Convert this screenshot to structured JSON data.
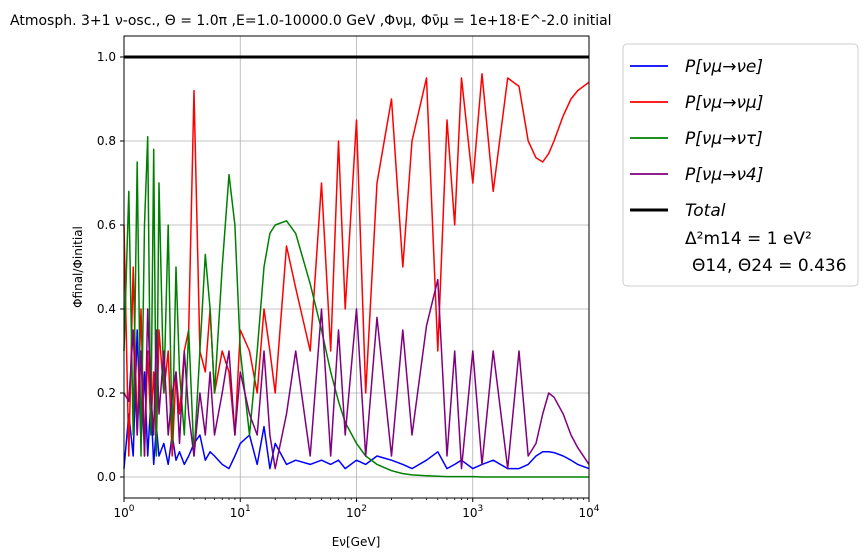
{
  "chart_data": {
    "type": "line",
    "title": "Atmosph. 3+1 ν-osc., Θ = 1.0π ,E=1.0-10000.0 GeV ,Φνμ, Φν̄μ = 1e+18·E^-2.0 initial",
    "xlabel": "Eν[GeV]",
    "ylabel": "Φfinal/Φinitial",
    "xscale": "log",
    "xlim": [
      1,
      10000
    ],
    "ylim": [
      -0.05,
      1.05
    ],
    "grid": true,
    "legend_position": "outside-right",
    "x_ticks": [
      "10^0",
      "10^1",
      "10^2",
      "10^3",
      "10^4"
    ],
    "y_ticks": [
      "0.0",
      "0.2",
      "0.4",
      "0.6",
      "0.8",
      "1.0"
    ],
    "legend_note": [
      "Δ²m14 = 1 eV²",
      "Θ14, Θ24 = 0.436"
    ],
    "series": [
      {
        "name": "P[νμ→νe]",
        "color": "#0000ff",
        "x": [
          1,
          1.1,
          1.2,
          1.3,
          1.4,
          1.5,
          1.6,
          1.7,
          1.8,
          1.9,
          2.0,
          2.2,
          2.4,
          2.6,
          2.8,
          3.0,
          3.3,
          3.6,
          4.0,
          4.5,
          5,
          5.5,
          6,
          7,
          8,
          9,
          10,
          12,
          14,
          16,
          18,
          20,
          25,
          30,
          40,
          50,
          60,
          70,
          80,
          100,
          120,
          150,
          200,
          250,
          300,
          400,
          500,
          600,
          700,
          800,
          1000,
          1200,
          1500,
          2000,
          2500,
          3000,
          3500,
          4000,
          4500,
          5000,
          6000,
          7000,
          8000,
          10000
        ],
        "y": [
          0.02,
          0.15,
          0.05,
          0.35,
          0.08,
          0.25,
          0.05,
          0.18,
          0.03,
          0.12,
          0.05,
          0.08,
          0.03,
          0.1,
          0.04,
          0.06,
          0.03,
          0.05,
          0.08,
          0.1,
          0.04,
          0.06,
          0.05,
          0.03,
          0.02,
          0.05,
          0.08,
          0.1,
          0.03,
          0.12,
          0.02,
          0.08,
          0.03,
          0.04,
          0.03,
          0.04,
          0.03,
          0.04,
          0.02,
          0.04,
          0.03,
          0.05,
          0.04,
          0.03,
          0.02,
          0.04,
          0.06,
          0.02,
          0.03,
          0.04,
          0.02,
          0.03,
          0.04,
          0.02,
          0.02,
          0.03,
          0.05,
          0.06,
          0.06,
          0.058,
          0.05,
          0.04,
          0.03,
          0.02
        ]
      },
      {
        "name": "P[νμ→νμ]",
        "color": "#ff0000",
        "x": [
          1,
          1.1,
          1.2,
          1.3,
          1.4,
          1.5,
          1.6,
          1.7,
          1.8,
          1.9,
          2.0,
          2.2,
          2.4,
          2.6,
          2.8,
          3.0,
          3.3,
          3.6,
          4.0,
          4.5,
          5,
          5.5,
          6,
          7,
          8,
          9,
          10,
          12,
          14,
          16,
          18,
          20,
          25,
          30,
          40,
          50,
          60,
          70,
          80,
          100,
          120,
          150,
          200,
          250,
          300,
          400,
          500,
          600,
          700,
          800,
          1000,
          1200,
          1500,
          2000,
          2500,
          3000,
          3500,
          4000,
          4500,
          5000,
          6000,
          7000,
          8000,
          10000
        ],
        "y": [
          0.6,
          0.05,
          0.5,
          0.1,
          0.4,
          0.05,
          0.3,
          0.12,
          0.25,
          0.08,
          0.35,
          0.2,
          0.3,
          0.05,
          0.25,
          0.15,
          0.3,
          0.35,
          0.92,
          0.3,
          0.25,
          0.4,
          0.2,
          0.3,
          0.25,
          0.1,
          0.35,
          0.3,
          0.2,
          0.4,
          0.3,
          0.2,
          0.55,
          0.45,
          0.3,
          0.7,
          0.3,
          0.8,
          0.4,
          0.85,
          0.2,
          0.7,
          0.9,
          0.5,
          0.8,
          0.95,
          0.3,
          0.85,
          0.6,
          0.95,
          0.7,
          0.96,
          0.68,
          0.95,
          0.93,
          0.8,
          0.76,
          0.75,
          0.77,
          0.8,
          0.86,
          0.9,
          0.92,
          0.94
        ]
      },
      {
        "name": "P[νμ→ντ]",
        "color": "#008000",
        "x": [
          1,
          1.1,
          1.2,
          1.3,
          1.4,
          1.5,
          1.6,
          1.7,
          1.8,
          1.9,
          2.0,
          2.2,
          2.4,
          2.6,
          2.8,
          3.0,
          3.3,
          3.6,
          4.0,
          4.5,
          5,
          5.5,
          6,
          7,
          8,
          9,
          10,
          12,
          14,
          16,
          18,
          20,
          25,
          30,
          40,
          50,
          60,
          70,
          80,
          100,
          120,
          150,
          200,
          250,
          300,
          400,
          500,
          600,
          700,
          800,
          1000,
          1200,
          1500,
          2000,
          2500,
          3000,
          3500,
          4000,
          4500,
          5000,
          6000,
          7000,
          8000,
          10000
        ],
        "y": [
          0.3,
          0.68,
          0.1,
          0.75,
          0.05,
          0.6,
          0.81,
          0.1,
          0.78,
          0.05,
          0.7,
          0.2,
          0.6,
          0.08,
          0.5,
          0.25,
          0.1,
          0.35,
          0.05,
          0.3,
          0.53,
          0.4,
          0.2,
          0.5,
          0.72,
          0.6,
          0.3,
          0.1,
          0.3,
          0.5,
          0.58,
          0.6,
          0.61,
          0.58,
          0.46,
          0.35,
          0.25,
          0.18,
          0.13,
          0.08,
          0.05,
          0.03,
          0.015,
          0.008,
          0.005,
          0.003,
          0.002,
          0.001,
          0.001,
          0.001,
          0.001,
          0.0,
          0.0,
          0.0,
          0.0,
          0.0,
          0.0,
          0.0,
          0.0,
          0.0,
          0.0,
          0.0,
          0.0,
          0.0
        ]
      },
      {
        "name": "P[νμ→ν4]",
        "color": "#800080",
        "x": [
          1,
          1.1,
          1.2,
          1.3,
          1.4,
          1.5,
          1.6,
          1.7,
          1.8,
          1.9,
          2.0,
          2.2,
          2.4,
          2.6,
          2.8,
          3.0,
          3.3,
          3.6,
          4.0,
          4.5,
          5,
          5.5,
          6,
          7,
          8,
          9,
          10,
          12,
          14,
          16,
          18,
          20,
          25,
          30,
          40,
          50,
          60,
          70,
          80,
          100,
          120,
          150,
          200,
          250,
          300,
          400,
          500,
          600,
          700,
          800,
          1000,
          1200,
          1500,
          2000,
          2500,
          3000,
          3500,
          4000,
          4500,
          5000,
          6000,
          7000,
          8000,
          10000
        ],
        "y": [
          0.2,
          0.18,
          0.35,
          0.1,
          0.3,
          0.05,
          0.4,
          0.2,
          0.1,
          0.35,
          0.15,
          0.3,
          0.1,
          0.2,
          0.25,
          0.08,
          0.3,
          0.15,
          0.05,
          0.2,
          0.1,
          0.25,
          0.1,
          0.2,
          0.3,
          0.1,
          0.25,
          0.15,
          0.1,
          0.3,
          0.1,
          0.02,
          0.15,
          0.3,
          0.05,
          0.4,
          0.05,
          0.35,
          0.1,
          0.4,
          0.05,
          0.38,
          0.05,
          0.35,
          0.1,
          0.36,
          0.47,
          0.05,
          0.3,
          0.02,
          0.3,
          0.03,
          0.3,
          0.02,
          0.3,
          0.05,
          0.08,
          0.15,
          0.2,
          0.19,
          0.15,
          0.1,
          0.07,
          0.03
        ]
      },
      {
        "name": "Total",
        "color": "#000000",
        "x": [
          1,
          10000
        ],
        "y": [
          1.0,
          1.0
        ]
      }
    ]
  }
}
